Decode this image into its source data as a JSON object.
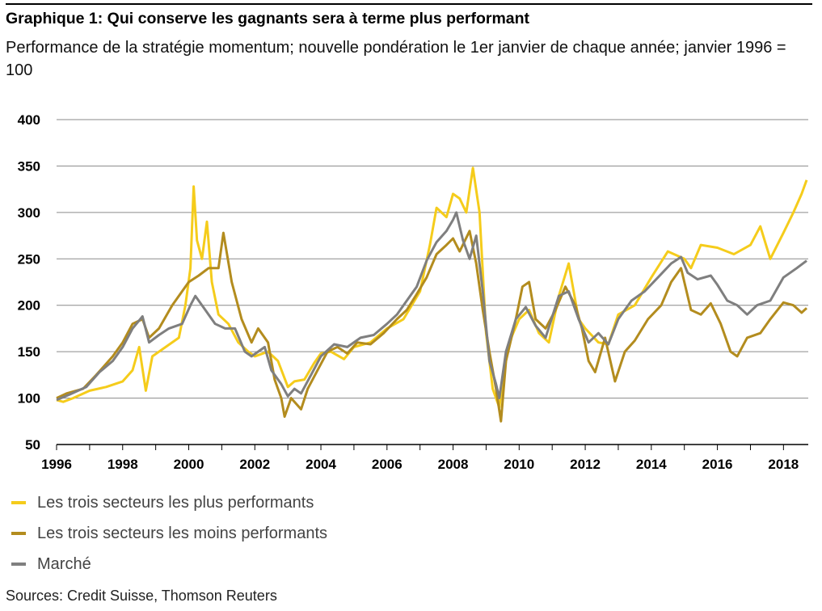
{
  "title": "Graphique 1: Qui conserve les gagnants sera à terme plus performant",
  "subtitle": "Performance de la stratégie momentum; nouvelle pondération le 1er janvier de chaque année; janvier 1996 = 100",
  "source": "Sources: Credit Suisse, Thomson Reuters",
  "chart_data": {
    "type": "line",
    "xlim": [
      1996,
      2018.75
    ],
    "ylim": [
      50,
      400
    ],
    "x_ticks": [
      "1996",
      "1998",
      "2000",
      "2002",
      "2004",
      "2006",
      "2008",
      "2010",
      "2012",
      "2014",
      "2016",
      "2018"
    ],
    "y_ticks": [
      "50",
      "100",
      "150",
      "200",
      "250",
      "300",
      "350",
      "400"
    ],
    "grid": true,
    "legend_position": "bottom-left",
    "series": [
      {
        "name": "Les trois secteurs les plus performants",
        "color": "#f5cc1b",
        "points": [
          [
            1996,
            98
          ],
          [
            1996.2,
            96
          ],
          [
            1996.5,
            100
          ],
          [
            1997,
            108
          ],
          [
            1997.5,
            112
          ],
          [
            1998,
            118
          ],
          [
            1998.3,
            130
          ],
          [
            1998.5,
            155
          ],
          [
            1998.7,
            108
          ],
          [
            1998.9,
            145
          ],
          [
            1999.3,
            155
          ],
          [
            1999.7,
            165
          ],
          [
            1999.9,
            200
          ],
          [
            2000.05,
            240
          ],
          [
            2000.15,
            328
          ],
          [
            2000.25,
            270
          ],
          [
            2000.4,
            250
          ],
          [
            2000.55,
            290
          ],
          [
            2000.7,
            225
          ],
          [
            2000.9,
            190
          ],
          [
            2001.2,
            180
          ],
          [
            2001.5,
            160
          ],
          [
            2001.8,
            150
          ],
          [
            2002,
            145
          ],
          [
            2002.4,
            150
          ],
          [
            2002.7,
            140
          ],
          [
            2003.0,
            112
          ],
          [
            2003.2,
            118
          ],
          [
            2003.5,
            120
          ],
          [
            2003.8,
            138
          ],
          [
            2004,
            148
          ],
          [
            2004.3,
            150
          ],
          [
            2004.7,
            142
          ],
          [
            2005,
            155
          ],
          [
            2005.5,
            160
          ],
          [
            2006,
            175
          ],
          [
            2006.5,
            185
          ],
          [
            2007,
            215
          ],
          [
            2007.3,
            265
          ],
          [
            2007.5,
            305
          ],
          [
            2007.8,
            295
          ],
          [
            2008.0,
            320
          ],
          [
            2008.2,
            315
          ],
          [
            2008.4,
            300
          ],
          [
            2008.6,
            348
          ],
          [
            2008.8,
            300
          ],
          [
            2009.0,
            170
          ],
          [
            2009.2,
            110
          ],
          [
            2009.4,
            90
          ],
          [
            2009.5,
            120
          ],
          [
            2009.7,
            160
          ],
          [
            2010.0,
            185
          ],
          [
            2010.3,
            195
          ],
          [
            2010.6,
            170
          ],
          [
            2010.9,
            160
          ],
          [
            2011.2,
            210
          ],
          [
            2011.5,
            245
          ],
          [
            2011.8,
            185
          ],
          [
            2012.0,
            175
          ],
          [
            2012.4,
            160
          ],
          [
            2012.7,
            158
          ],
          [
            2013.0,
            190
          ],
          [
            2013.5,
            200
          ],
          [
            2014.0,
            230
          ],
          [
            2014.5,
            258
          ],
          [
            2015.0,
            250
          ],
          [
            2015.2,
            240
          ],
          [
            2015.5,
            265
          ],
          [
            2016.0,
            262
          ],
          [
            2016.5,
            255
          ],
          [
            2017.0,
            265
          ],
          [
            2017.3,
            285
          ],
          [
            2017.6,
            250
          ],
          [
            2018.0,
            278
          ],
          [
            2018.3,
            300
          ],
          [
            2018.55,
            320
          ],
          [
            2018.7,
            335
          ]
        ]
      },
      {
        "name": "Les trois secteurs les moins performants",
        "color": "#b38c1e",
        "points": [
          [
            1996,
            100
          ],
          [
            1996.3,
            105
          ],
          [
            1996.8,
            110
          ],
          [
            1997.2,
            125
          ],
          [
            1997.7,
            145
          ],
          [
            1998.0,
            160
          ],
          [
            1998.3,
            180
          ],
          [
            1998.6,
            185
          ],
          [
            1998.8,
            165
          ],
          [
            1999.1,
            175
          ],
          [
            1999.5,
            200
          ],
          [
            1999.8,
            215
          ],
          [
            2000.0,
            225
          ],
          [
            2000.3,
            232
          ],
          [
            2000.6,
            240
          ],
          [
            2000.9,
            240
          ],
          [
            2001.05,
            278
          ],
          [
            2001.3,
            225
          ],
          [
            2001.6,
            185
          ],
          [
            2001.9,
            160
          ],
          [
            2002.1,
            175
          ],
          [
            2002.4,
            160
          ],
          [
            2002.6,
            120
          ],
          [
            2002.8,
            100
          ],
          [
            2002.9,
            80
          ],
          [
            2003.1,
            100
          ],
          [
            2003.4,
            88
          ],
          [
            2003.6,
            110
          ],
          [
            2003.9,
            130
          ],
          [
            2004.2,
            150
          ],
          [
            2004.5,
            155
          ],
          [
            2004.8,
            148
          ],
          [
            2005.1,
            160
          ],
          [
            2005.5,
            158
          ],
          [
            2005.9,
            170
          ],
          [
            2006.3,
            185
          ],
          [
            2006.6,
            195
          ],
          [
            2006.9,
            212
          ],
          [
            2007.2,
            230
          ],
          [
            2007.5,
            255
          ],
          [
            2007.8,
            265
          ],
          [
            2008.0,
            272
          ],
          [
            2008.2,
            258
          ],
          [
            2008.5,
            280
          ],
          [
            2008.7,
            245
          ],
          [
            2008.9,
            195
          ],
          [
            2009.1,
            150
          ],
          [
            2009.3,
            110
          ],
          [
            2009.45,
            75
          ],
          [
            2009.6,
            140
          ],
          [
            2009.9,
            185
          ],
          [
            2010.1,
            220
          ],
          [
            2010.3,
            225
          ],
          [
            2010.5,
            185
          ],
          [
            2010.8,
            175
          ],
          [
            2011.1,
            195
          ],
          [
            2011.4,
            220
          ],
          [
            2011.7,
            200
          ],
          [
            2011.9,
            175
          ],
          [
            2012.1,
            140
          ],
          [
            2012.3,
            128
          ],
          [
            2012.6,
            165
          ],
          [
            2012.9,
            118
          ],
          [
            2013.2,
            150
          ],
          [
            2013.5,
            162
          ],
          [
            2013.9,
            185
          ],
          [
            2014.3,
            200
          ],
          [
            2014.6,
            225
          ],
          [
            2014.9,
            240
          ],
          [
            2015.2,
            195
          ],
          [
            2015.5,
            190
          ],
          [
            2015.8,
            202
          ],
          [
            2016.1,
            180
          ],
          [
            2016.4,
            150
          ],
          [
            2016.6,
            145
          ],
          [
            2016.9,
            165
          ],
          [
            2017.3,
            170
          ],
          [
            2017.6,
            185
          ],
          [
            2018.0,
            203
          ],
          [
            2018.3,
            200
          ],
          [
            2018.55,
            192
          ],
          [
            2018.7,
            197
          ]
        ]
      },
      {
        "name": "Marché",
        "color": "#7f7f7f",
        "points": [
          [
            1996,
            98
          ],
          [
            1996.4,
            104
          ],
          [
            1996.9,
            112
          ],
          [
            1997.3,
            128
          ],
          [
            1997.7,
            140
          ],
          [
            1998.0,
            155
          ],
          [
            1998.3,
            175
          ],
          [
            1998.6,
            188
          ],
          [
            1998.8,
            160
          ],
          [
            1999.1,
            168
          ],
          [
            1999.4,
            175
          ],
          [
            1999.8,
            180
          ],
          [
            2000.05,
            200
          ],
          [
            2000.2,
            210
          ],
          [
            2000.5,
            195
          ],
          [
            2000.8,
            180
          ],
          [
            2001.1,
            175
          ],
          [
            2001.4,
            175
          ],
          [
            2001.7,
            150
          ],
          [
            2001.9,
            145
          ],
          [
            2002.1,
            150
          ],
          [
            2002.3,
            155
          ],
          [
            2002.5,
            130
          ],
          [
            2002.8,
            115
          ],
          [
            2003.0,
            102
          ],
          [
            2003.2,
            110
          ],
          [
            2003.4,
            105
          ],
          [
            2003.7,
            125
          ],
          [
            2004.0,
            145
          ],
          [
            2004.4,
            158
          ],
          [
            2004.8,
            155
          ],
          [
            2005.2,
            165
          ],
          [
            2005.6,
            168
          ],
          [
            2006.0,
            180
          ],
          [
            2006.3,
            190
          ],
          [
            2006.6,
            205
          ],
          [
            2006.9,
            220
          ],
          [
            2007.2,
            248
          ],
          [
            2007.5,
            268
          ],
          [
            2007.8,
            280
          ],
          [
            2008.0,
            292
          ],
          [
            2008.1,
            300
          ],
          [
            2008.3,
            270
          ],
          [
            2008.5,
            250
          ],
          [
            2008.7,
            275
          ],
          [
            2008.9,
            215
          ],
          [
            2009.1,
            140
          ],
          [
            2009.3,
            115
          ],
          [
            2009.4,
            100
          ],
          [
            2009.6,
            150
          ],
          [
            2009.9,
            185
          ],
          [
            2010.2,
            198
          ],
          [
            2010.5,
            178
          ],
          [
            2010.8,
            165
          ],
          [
            2011.2,
            210
          ],
          [
            2011.5,
            215
          ],
          [
            2011.8,
            185
          ],
          [
            2012.1,
            160
          ],
          [
            2012.4,
            170
          ],
          [
            2012.7,
            158
          ],
          [
            2013.0,
            185
          ],
          [
            2013.4,
            205
          ],
          [
            2013.8,
            215
          ],
          [
            2014.2,
            230
          ],
          [
            2014.6,
            245
          ],
          [
            2014.9,
            252
          ],
          [
            2015.1,
            235
          ],
          [
            2015.4,
            228
          ],
          [
            2015.8,
            232
          ],
          [
            2016.0,
            222
          ],
          [
            2016.3,
            205
          ],
          [
            2016.6,
            200
          ],
          [
            2016.9,
            190
          ],
          [
            2017.2,
            200
          ],
          [
            2017.6,
            205
          ],
          [
            2018.0,
            230
          ],
          [
            2018.4,
            240
          ],
          [
            2018.7,
            248
          ]
        ]
      }
    ]
  }
}
